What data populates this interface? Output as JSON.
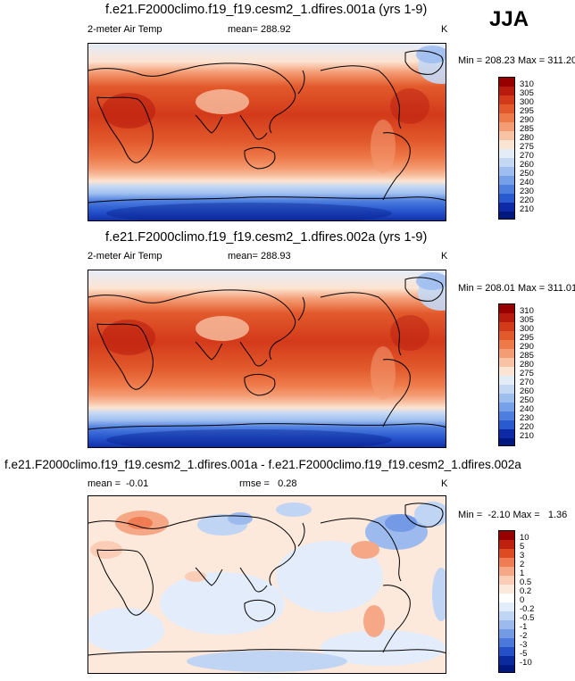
{
  "season": "JJA",
  "panels": [
    {
      "title": "f.e21.F2000climo.f19_f19.cesm2_1.dfires.001a (yrs 1-9)",
      "left_label": "2-meter Air Temp",
      "center_label": "mean= 288.92",
      "unit": "K",
      "minmax": "Min = 208.23 Max = 311.20",
      "legend": [
        "310",
        "305",
        "300",
        "295",
        "290",
        "285",
        "280",
        "275",
        "270",
        "260",
        "250",
        "240",
        "230",
        "220",
        "210"
      ]
    },
    {
      "title": "f.e21.F2000climo.f19_f19.cesm2_1.dfires.002a (yrs 1-9)",
      "left_label": "2-meter Air Temp",
      "center_label": "mean= 288.93",
      "unit": "K",
      "minmax": "Min = 208.01 Max = 311.01",
      "legend": [
        "310",
        "305",
        "300",
        "295",
        "290",
        "285",
        "280",
        "275",
        "270",
        "260",
        "250",
        "240",
        "230",
        "220",
        "210"
      ]
    },
    {
      "title": "f.e21.F2000climo.f19_f19.cesm2_1.dfires.001a - f.e21.F2000climo.f19_f19.cesm2_1.dfires.002a",
      "left_label": "mean =  -0.01",
      "center_label": "rmse =   0.28",
      "unit": "K",
      "minmax": "Min =  -2.10 Max =   1.36",
      "legend": [
        "10",
        "5",
        "3",
        "2",
        "1",
        "0.5",
        "0.2",
        "0",
        "-0.2",
        "-0.5",
        "-1",
        "-2",
        "-3",
        "-5",
        "-10"
      ]
    }
  ],
  "colors": {
    "temp_scale": [
      "#980000",
      "#b81a0d",
      "#d33a1a",
      "#e25a2c",
      "#ee7a4a",
      "#f49d74",
      "#f8c2a4",
      "#fce4d2",
      "#e4ecf8",
      "#c4d8f4",
      "#9ebef0",
      "#76a0e8",
      "#4e7ede",
      "#2a5ad0",
      "#0e2aa6",
      "#001880"
    ],
    "diff_scale": [
      "#980000",
      "#c0200e",
      "#de4a22",
      "#ef7c52",
      "#f6a886",
      "#fbcdb6",
      "#fde8dc",
      "#ffffff",
      "#e2ecfa",
      "#c0d5f4",
      "#9cbaee",
      "#749ae6",
      "#4c78db",
      "#2650c8",
      "#0a2a9e",
      "#001880"
    ]
  }
}
